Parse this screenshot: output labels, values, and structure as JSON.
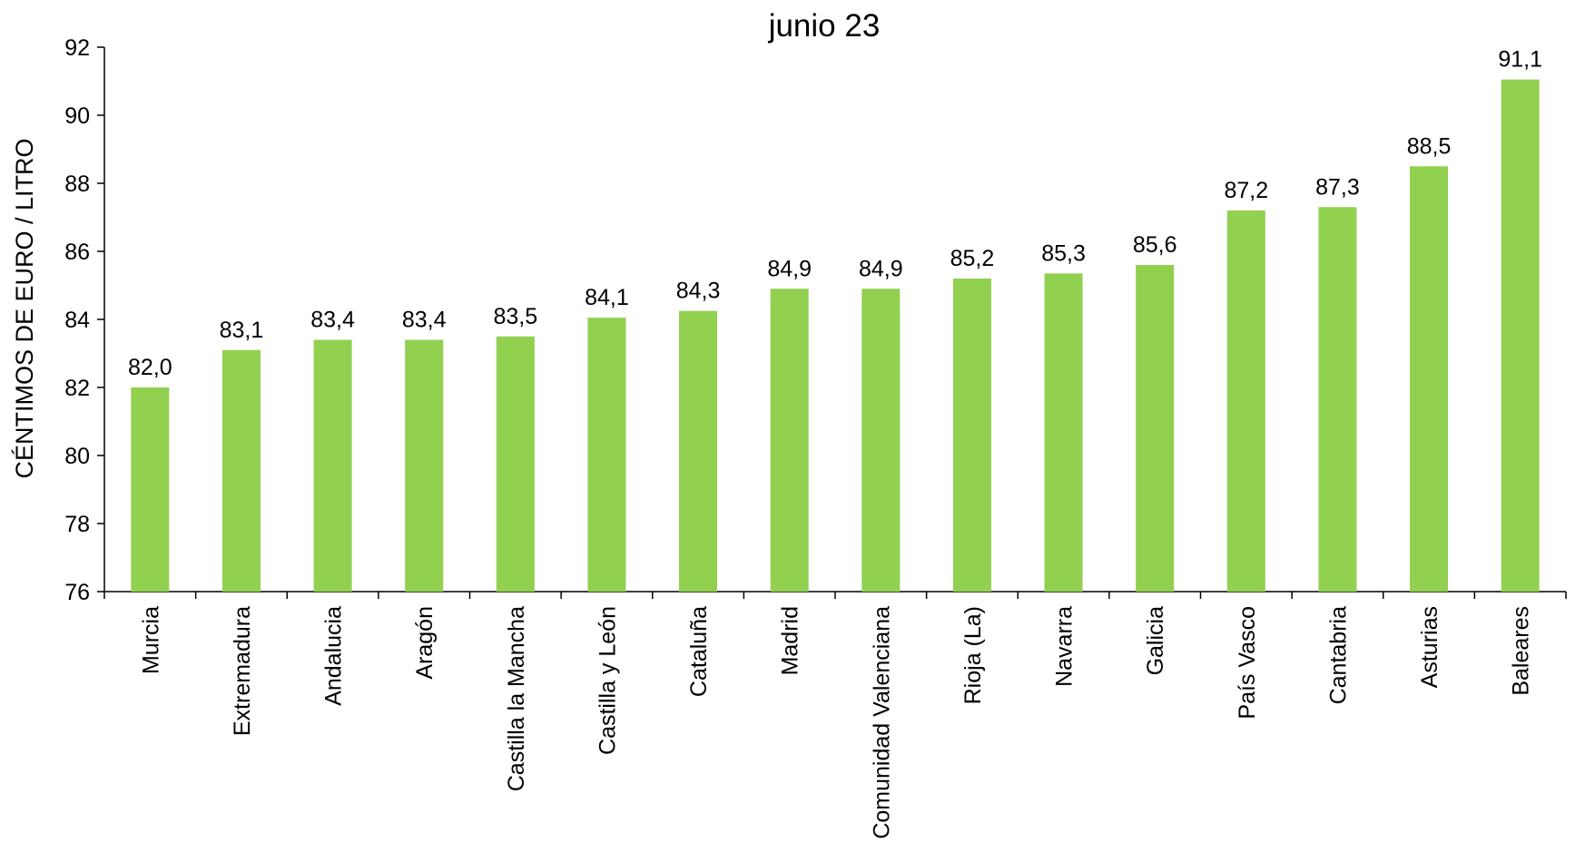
{
  "chart_data": {
    "type": "bar",
    "title": "junio 23",
    "xlabel": "",
    "ylabel": "CÉNTIMOS DE EURO / LITRO",
    "ylim": [
      76,
      92
    ],
    "yticks": [
      "76",
      "78",
      "80",
      "82",
      "84",
      "86",
      "88",
      "90",
      "92"
    ],
    "grid": false,
    "legend": "none",
    "bar_color": "#92D050",
    "categories": [
      "Murcia",
      "Extremadura",
      "Andalucia",
      "Aragón",
      "Castilla la Mancha",
      "Castilla y León",
      "Cataluña",
      "Madrid",
      "Comunidad Valenciana",
      "Rioja (La)",
      "Navarra",
      "Galicia",
      "País Vasco",
      "Cantabria",
      "Asturias",
      "Baleares"
    ],
    "values": [
      82.0,
      83.1,
      83.4,
      83.4,
      83.5,
      84.05,
      84.25,
      84.9,
      84.9,
      85.2,
      85.35,
      85.6,
      87.2,
      87.3,
      88.5,
      91.05
    ],
    "value_labels": [
      "82,0",
      "83,1",
      "83,4",
      "83,4",
      "83,5",
      "84,1",
      "84,3",
      "84,9",
      "84,9",
      "85,2",
      "85,3",
      "85,6",
      "87,2",
      "87,3",
      "88,5",
      "91,1"
    ]
  }
}
